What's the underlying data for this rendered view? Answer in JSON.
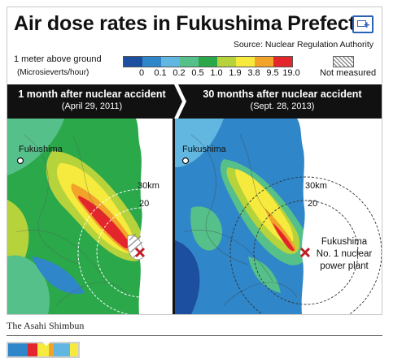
{
  "figure": {
    "title": "Air dose rates in Fukushima Prefecture",
    "source": "Source: Nuclear Regulation Authority",
    "expand_icon": "expand-window-icon"
  },
  "legend": {
    "label": "1 meter above ground",
    "units": "(Microsieverts/hour)",
    "ticks": [
      "0",
      "0.1",
      "0.2",
      "0.5",
      "1.0",
      "1.9",
      "3.8",
      "9.5",
      "19.0"
    ],
    "colors": [
      "#1d4fa0",
      "#2f86c8",
      "#62b7e0",
      "#56c08a",
      "#2aa84a",
      "#b7d33b",
      "#f6ea3e",
      "#f3a32a",
      "#e3262b"
    ],
    "not_measured": "Not measured"
  },
  "panels": {
    "left": {
      "heading": "1 month after nuclear accident",
      "date": "(April 29, 2011)",
      "city": "Fukushima",
      "ring_outer": "30km",
      "ring_inner": "20"
    },
    "right": {
      "heading": "30 months after nuclear accident",
      "date": "(Sept. 28, 2013)",
      "city": "Fukushima",
      "ring_outer": "30km",
      "ring_inner": "20",
      "plant_label": [
        "Fukushima",
        "No. 1 nuclear",
        "power plant"
      ]
    }
  },
  "caption": {
    "credit": "The Asahi Shimbun"
  },
  "map_colors": {
    "ocean": "#ffffff",
    "deep_blue": "#1d4fa0",
    "blue": "#2f86c8",
    "light_blue": "#62b7e0",
    "teal": "#56c08a",
    "green": "#2aa84a",
    "yellow_green": "#b7d33b",
    "yellow": "#f6ea3e",
    "orange": "#f3a32a",
    "red": "#e3262b",
    "plant_marker": "#c01d24"
  }
}
